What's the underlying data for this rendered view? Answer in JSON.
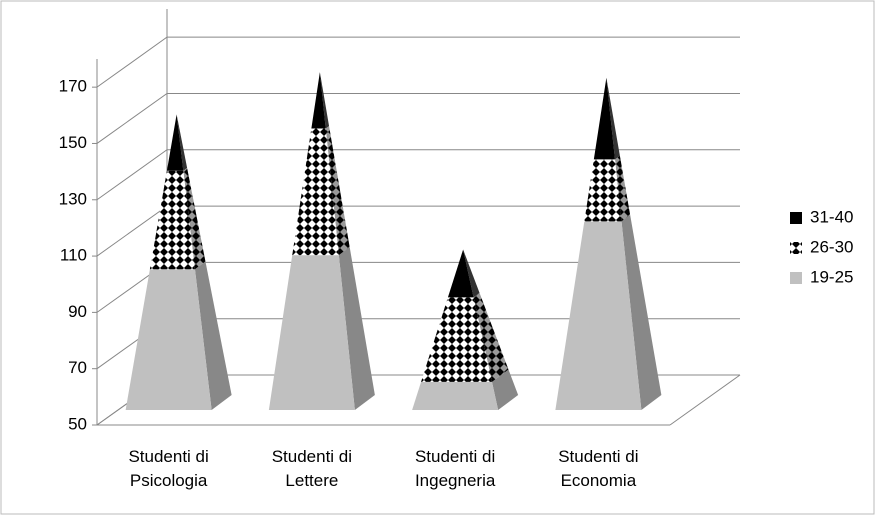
{
  "chart_data": {
    "type": "pyramid3d",
    "categories": [
      "Studenti di Psicologia",
      "Studenti di Lettere",
      "Studenti di Ingegneria",
      "Studenti di Economia"
    ],
    "series": [
      {
        "name": "19-25",
        "color": "#c0c0c0",
        "values": [
          100,
          105,
          60,
          117
        ]
      },
      {
        "name": "26-30",
        "color": "#000000",
        "pattern": "checker",
        "values": [
          35,
          45,
          30,
          22
        ]
      },
      {
        "name": "31-40",
        "color": "#000000",
        "values": [
          20,
          20,
          17,
          29
        ]
      }
    ],
    "ylim": [
      50,
      180
    ],
    "yticks": [
      50,
      70,
      90,
      110,
      130,
      150,
      170
    ],
    "grid": true,
    "legend": "right"
  }
}
